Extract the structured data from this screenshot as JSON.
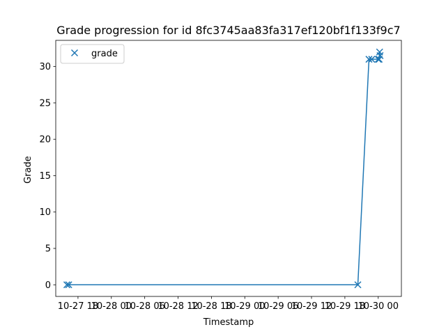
{
  "chart_data": {
    "type": "line",
    "title": "Grade progression for id 8fc3745aa83fa317ef120bf1f133f9c7",
    "xlabel": "Timestamp",
    "ylabel": "Grade",
    "x_tick_labels": [
      "10-27 18",
      "10-28 00",
      "10-28 06",
      "10-28 12",
      "10-28 18",
      "10-29 00",
      "10-29 06",
      "10-29 12",
      "10-29 18",
      "10-30 00"
    ],
    "x_ticks": [
      "2023-10-27 18:00",
      "2023-10-28 00:00",
      "2023-10-28 06:00",
      "2023-10-28 12:00",
      "2023-10-28 18:00",
      "2023-10-29 00:00",
      "2023-10-29 06:00",
      "2023-10-29 12:00",
      "2023-10-29 18:00",
      "2023-10-30 00:00"
    ],
    "y_ticks": [
      0,
      5,
      10,
      15,
      20,
      25,
      30
    ],
    "xlim": [
      "2023-10-27 14:00",
      "2023-10-30 04:10"
    ],
    "ylim": [
      -1.6,
      33.6
    ],
    "grid": false,
    "legend": {
      "entries": [
        "grade"
      ],
      "placement": "top-left"
    },
    "series": [
      {
        "name": "grade",
        "color": "#1f77b4",
        "marker": "x",
        "x": [
          "2023-10-27 16:00",
          "2023-10-27 16:20",
          "2023-10-29 20:20",
          "2023-10-29 22:20",
          "2023-10-29 22:50",
          "2023-10-30 00:00",
          "2023-10-30 00:10",
          "2023-10-30 00:15",
          "2023-10-30 00:20"
        ],
        "y": [
          0,
          0,
          0,
          31,
          31,
          31,
          31,
          32,
          31.5
        ]
      }
    ]
  }
}
